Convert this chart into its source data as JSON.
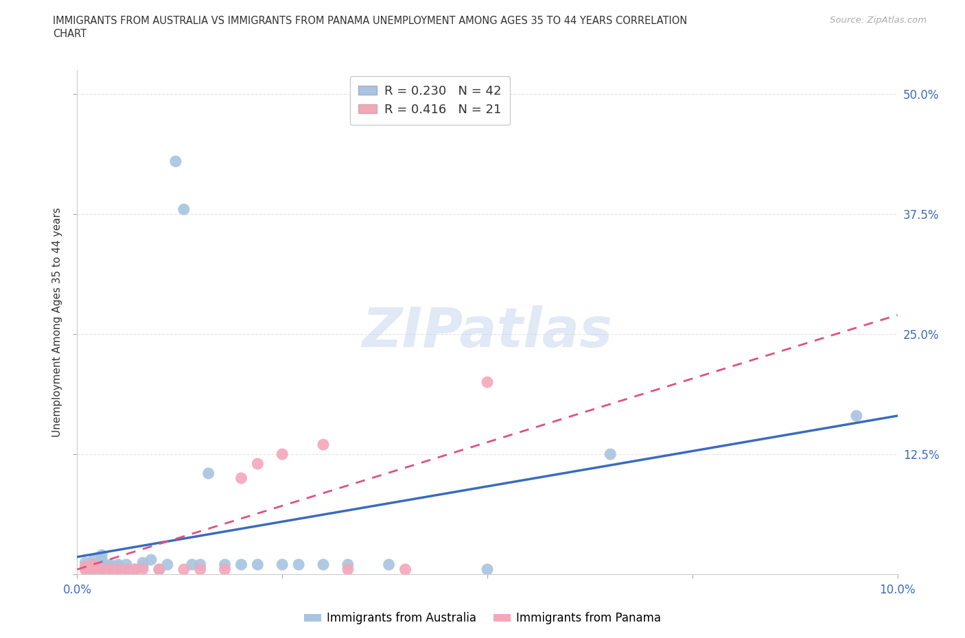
{
  "title_line1": "IMMIGRANTS FROM AUSTRALIA VS IMMIGRANTS FROM PANAMA UNEMPLOYMENT AMONG AGES 35 TO 44 YEARS CORRELATION",
  "title_line2": "CHART",
  "source": "Source: ZipAtlas.com",
  "ylabel": "Unemployment Among Ages 35 to 44 years",
  "watermark": "ZIPatlas",
  "xlim": [
    0.0,
    0.1
  ],
  "ylim": [
    0.0,
    0.525
  ],
  "xticks": [
    0.0,
    0.025,
    0.05,
    0.075,
    0.1
  ],
  "xticklabels": [
    "0.0%",
    "",
    "",
    "",
    "10.0%"
  ],
  "yticks": [
    0.0,
    0.125,
    0.25,
    0.375,
    0.5
  ],
  "yticklabels_right": [
    "",
    "12.5%",
    "25.0%",
    "37.5%",
    "50.0%"
  ],
  "australia_R": 0.23,
  "australia_N": 42,
  "panama_R": 0.416,
  "panama_N": 21,
  "australia_color": "#a8c4e0",
  "panama_color": "#f4a7b9",
  "australia_line_color": "#3a6bbf",
  "panama_line_color": "#e05080",
  "legend_label_australia": "Immigrants from Australia",
  "legend_label_panama": "Immigrants from Panama",
  "australia_x": [
    0.001,
    0.001,
    0.001,
    0.002,
    0.002,
    0.002,
    0.002,
    0.003,
    0.003,
    0.003,
    0.003,
    0.003,
    0.004,
    0.004,
    0.004,
    0.005,
    0.005,
    0.005,
    0.006,
    0.006,
    0.007,
    0.008,
    0.008,
    0.009,
    0.01,
    0.011,
    0.012,
    0.013,
    0.014,
    0.015,
    0.016,
    0.018,
    0.02,
    0.022,
    0.025,
    0.027,
    0.03,
    0.033,
    0.038,
    0.05,
    0.065,
    0.095
  ],
  "australia_y": [
    0.005,
    0.008,
    0.012,
    0.005,
    0.008,
    0.01,
    0.015,
    0.005,
    0.007,
    0.01,
    0.015,
    0.02,
    0.005,
    0.008,
    0.01,
    0.005,
    0.008,
    0.01,
    0.005,
    0.01,
    0.005,
    0.008,
    0.012,
    0.015,
    0.005,
    0.01,
    0.43,
    0.38,
    0.01,
    0.01,
    0.105,
    0.01,
    0.01,
    0.01,
    0.01,
    0.01,
    0.01,
    0.01,
    0.01,
    0.005,
    0.125,
    0.165
  ],
  "panama_x": [
    0.001,
    0.001,
    0.002,
    0.002,
    0.003,
    0.004,
    0.005,
    0.006,
    0.007,
    0.008,
    0.01,
    0.013,
    0.015,
    0.018,
    0.02,
    0.022,
    0.025,
    0.03,
    0.033,
    0.04,
    0.05
  ],
  "panama_y": [
    0.005,
    0.008,
    0.005,
    0.01,
    0.005,
    0.005,
    0.005,
    0.005,
    0.005,
    0.005,
    0.005,
    0.005,
    0.005,
    0.005,
    0.1,
    0.115,
    0.125,
    0.135,
    0.005,
    0.005,
    0.2
  ],
  "aus_line_x": [
    0.0,
    0.1
  ],
  "aus_line_y": [
    0.018,
    0.165
  ],
  "pan_line_x": [
    0.0,
    0.1
  ],
  "pan_line_y": [
    0.005,
    0.27
  ],
  "background_color": "#ffffff",
  "plot_bg_color": "#ffffff",
  "grid_color": "#dddddd"
}
